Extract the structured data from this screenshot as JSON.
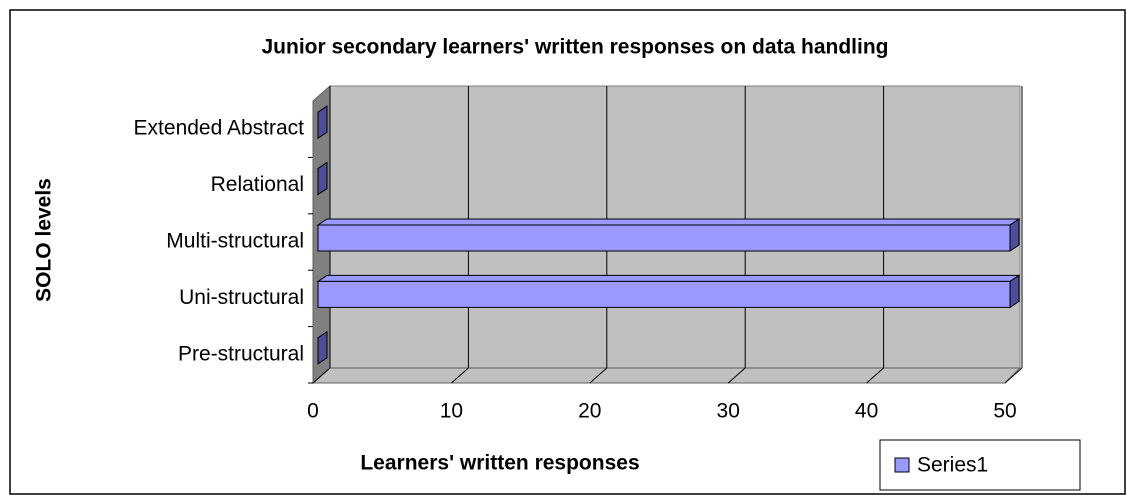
{
  "chart_data": {
    "type": "bar",
    "orientation": "horizontal",
    "title": "Junior secondary learners' written responses on data handling",
    "x_label": "Learners' written responses",
    "y_label": "SOLO levels",
    "categories": [
      "Pre-structural",
      "Uni-structural",
      "Multi-structural",
      "Relational",
      "Extended Abstract"
    ],
    "series": [
      {
        "name": "Series1",
        "color": "#9999ff",
        "values": [
          0,
          50,
          50,
          0,
          0
        ]
      }
    ],
    "xlim": [
      0,
      50
    ],
    "xticks": [
      0,
      10,
      20,
      30,
      40,
      50
    ],
    "grid": true,
    "legend": "bottom-right"
  }
}
